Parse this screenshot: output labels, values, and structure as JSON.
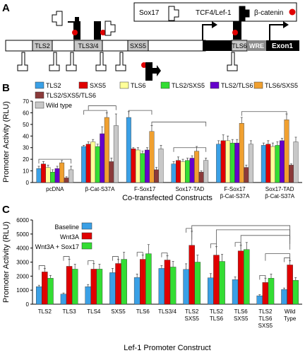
{
  "panel_a": {
    "label": "A",
    "legend": {
      "sox17_label": "Sox17",
      "tcf_label": "TCF4/Lef-1",
      "bcat_label": "β-catenin",
      "colors": {
        "tcf": "#000000",
        "bcat": "#e00000"
      }
    },
    "elements": {
      "tls2": "TLS2",
      "tls34": "TLS3/4",
      "sxs5": "SXS5",
      "tls6": "TLS6",
      "wre": "WRE",
      "exon1": "Exon1"
    }
  },
  "chart_data": [
    {
      "panel": "B",
      "type": "bar",
      "ylabel": "Promoter Activity (RLU)",
      "xlabel": "Co-transfected Constructs",
      "ylim": [
        0,
        70
      ],
      "yticks": [
        0,
        10,
        20,
        30,
        40,
        50,
        60,
        70
      ],
      "legend_placement": "top",
      "categories": [
        "pcDNA",
        "β-Cat-S37A",
        "F-Sox17",
        "Sox17-TAD",
        "F-Sox17\nβ-Cat-S37A",
        "Sox17-TAD\nβ-Cat-S37A"
      ],
      "series": [
        {
          "name": "TLS2",
          "color": "#3aa0e6",
          "values": [
            12,
            31,
            56,
            16,
            33,
            32
          ],
          "errors": [
            2,
            1,
            5,
            2,
            3,
            2
          ]
        },
        {
          "name": "SXS5",
          "color": "#e00000",
          "values": [
            16,
            33,
            29,
            19,
            36,
            33
          ],
          "errors": [
            2,
            2,
            1,
            3,
            5,
            3
          ]
        },
        {
          "name": "TLS6",
          "color": "#ffff99",
          "values": [
            13,
            35,
            28,
            18,
            36,
            31
          ],
          "errors": [
            2,
            2,
            2,
            2,
            4,
            3
          ]
        },
        {
          "name": "TLS2/SXS5",
          "color": "#33dd33",
          "values": [
            9,
            31,
            25,
            19,
            34,
            32
          ],
          "errors": [
            2,
            2,
            2,
            2,
            3,
            3
          ]
        },
        {
          "name": "TLS2/TLS6",
          "color": "#6600cc",
          "values": [
            12,
            42,
            28,
            21,
            34,
            36
          ],
          "errors": [
            2,
            6,
            2,
            2,
            3,
            2
          ]
        },
        {
          "name": "TLS6/SXS5",
          "color": "#f0a030",
          "values": [
            17,
            56,
            44,
            27,
            51,
            54
          ],
          "errors": [
            2,
            4,
            5,
            4,
            5,
            5
          ]
        },
        {
          "name": "TLS2/SXS5/TLS6",
          "color": "#8b3a3a",
          "values": [
            4,
            18,
            11,
            9,
            13,
            15
          ],
          "errors": [
            1,
            3,
            2,
            1,
            2,
            1
          ]
        },
        {
          "name": "Wild type",
          "color": "#c8c8c8",
          "values": [
            11,
            49,
            29,
            19,
            33,
            35
          ],
          "errors": [
            3,
            10,
            3,
            2,
            3,
            4
          ]
        }
      ]
    },
    {
      "panel": "C",
      "type": "bar",
      "ylabel": "Promoter Activity (RLU)",
      "xlabel": "Lef-1 Promoter Construct",
      "ylim": [
        0,
        6000
      ],
      "yticks": [
        0,
        1000,
        2000,
        3000,
        4000,
        5000,
        6000
      ],
      "legend_placement": "top-left",
      "categories": [
        "TLS2",
        "TLS3",
        "TLS4",
        "SXS5",
        "TLS6",
        "TLS3/4",
        "TLS2\nSXS5",
        "TLS2\nTLS6",
        "TLS6\nSXS5",
        "TLS2\nTLS6\nSXS5",
        "Wild\nType"
      ],
      "series": [
        {
          "name": "Baseline",
          "color": "#3aa0e6",
          "values": [
            1250,
            720,
            1250,
            2250,
            1900,
            2550,
            2480,
            1880,
            1750,
            600,
            1050
          ],
          "errors": [
            100,
            80,
            150,
            300,
            250,
            200,
            400,
            300,
            200,
            80,
            100
          ]
        },
        {
          "name": "Wnt3A",
          "color": "#e00000",
          "values": [
            2300,
            2700,
            2500,
            2900,
            3200,
            3150,
            4200,
            3500,
            3800,
            1550,
            2800
          ],
          "errors": [
            250,
            500,
            400,
            300,
            300,
            300,
            1000,
            600,
            400,
            300,
            300
          ]
        },
        {
          "name": "Wnt3A + Sox17",
          "color": "#33dd33",
          "values": [
            1850,
            2500,
            2500,
            3200,
            3600,
            2650,
            3000,
            3050,
            3900,
            1850,
            1700
          ],
          "errors": [
            200,
            350,
            350,
            500,
            650,
            400,
            500,
            500,
            500,
            300,
            200
          ]
        }
      ]
    }
  ],
  "panel_b_label": "B",
  "panel_c_label": "C"
}
